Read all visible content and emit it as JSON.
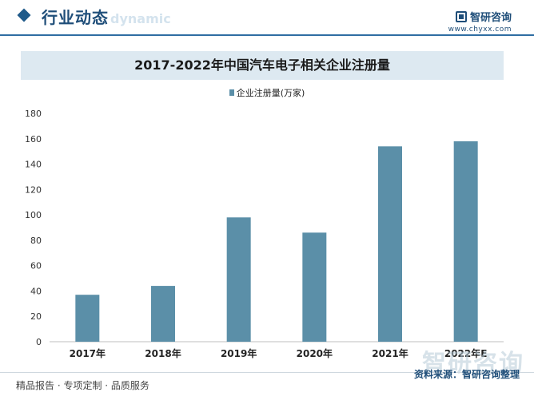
{
  "header": {
    "title": "行业动态",
    "subtitle": "dynamic",
    "brand_name": "智研咨询",
    "brand_url": "www.chyxx.com"
  },
  "legend": {
    "label": "企业注册量(万家)"
  },
  "watermark": "智研咨询",
  "footer": {
    "left": "精品报告 · 专项定制 · 品质服务",
    "right": "资料来源：智研咨询整理"
  },
  "colors": {
    "bar": "#5b8fa8",
    "accent": "#1f4e79",
    "title_band": "#dde9f1"
  },
  "chart_data": {
    "type": "bar",
    "title": "2017-2022年中国汽车电子相关企业注册量",
    "categories": [
      "2017年",
      "2018年",
      "2019年",
      "2020年",
      "2021年",
      "2022年E"
    ],
    "series": [
      {
        "name": "企业注册量(万家)",
        "values": [
          37,
          44,
          98,
          86,
          154,
          158
        ]
      }
    ],
    "xlabel": "",
    "ylabel": "",
    "ylim": [
      0,
      180
    ],
    "yticks": [
      0,
      20,
      40,
      60,
      80,
      100,
      120,
      140,
      160,
      180
    ],
    "grid": false,
    "legend": "top-center"
  }
}
